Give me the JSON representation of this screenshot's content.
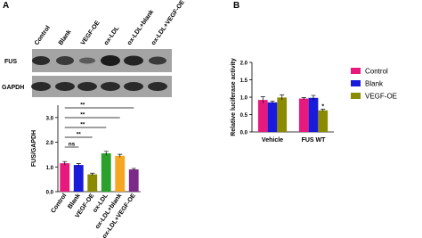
{
  "panels": [
    "A",
    "B"
  ],
  "blot": {
    "lanes": [
      "Control",
      "Blank",
      "VEGF-OE",
      "ox-LDL",
      "ox-LDL+blank",
      "ox-LDL+VEGF-OE"
    ],
    "rows": [
      "FUS",
      "GAPDH"
    ]
  },
  "chart_data": [
    {
      "type": "bar",
      "ylabel": "FUS/GAPDH",
      "categories": [
        "Control",
        "Blank",
        "VEGF-OE",
        "ox-LDL",
        "ox-LDL+blank",
        "ox-LDL+VEGF-OE"
      ],
      "values": [
        1.15,
        1.08,
        0.7,
        1.55,
        1.45,
        0.9
      ],
      "errors": [
        0.07,
        0.06,
        0.05,
        0.08,
        0.06,
        0.04
      ],
      "colors": [
        "#e8197d",
        "#1a1adb",
        "#8b8b00",
        "#2ca02c",
        "#f5a623",
        "#7b2a8a"
      ],
      "ylim": [
        0,
        3.5
      ],
      "yticks": [
        {
          "value": 0,
          "label": "0.0"
        },
        {
          "value": 1,
          "label": "1.0"
        },
        {
          "value": 2,
          "label": "2.0"
        },
        {
          "value": 3,
          "label": "3.0"
        }
      ],
      "annotations": [
        {
          "text": "ns",
          "categories": [
            "Control",
            "Blank"
          ]
        },
        {
          "text": "**",
          "categories": [
            "Control",
            "VEGF-OE"
          ]
        },
        {
          "text": "**",
          "categories": [
            "Control",
            "ox-LDL"
          ]
        },
        {
          "text": "**",
          "categories": [
            "Control",
            "ox-LDL+blank"
          ]
        },
        {
          "text": "**",
          "categories": [
            "Control",
            "ox-LDL+VEGF-OE"
          ]
        }
      ]
    },
    {
      "type": "bar",
      "ylabel": "Relative luciferase activity",
      "categories": [
        "Vehicle",
        "FUS WT"
      ],
      "series": [
        {
          "name": "Control",
          "color": "#e8197d",
          "values": [
            0.92,
            0.96
          ],
          "errors": [
            0.09,
            0.03
          ]
        },
        {
          "name": "Blank",
          "color": "#1a1adb",
          "values": [
            0.85,
            0.98
          ],
          "errors": [
            0.04,
            0.07
          ]
        },
        {
          "name": "VEGF-OE",
          "color": "#8b8b00",
          "values": [
            0.99,
            0.62
          ],
          "errors": [
            0.07,
            0.03
          ]
        }
      ],
      "ylim": [
        0,
        2
      ],
      "yticks": [
        {
          "value": 0,
          "label": "0.0"
        },
        {
          "value": 0.5,
          "label": "0.5"
        },
        {
          "value": 1,
          "label": "1.0"
        },
        {
          "value": 1.5,
          "label": "1.5"
        },
        {
          "value": 2,
          "label": "2.0"
        }
      ],
      "annotations": [
        {
          "text": "*",
          "series": "VEGF-OE",
          "category": "FUS WT"
        }
      ]
    }
  ]
}
